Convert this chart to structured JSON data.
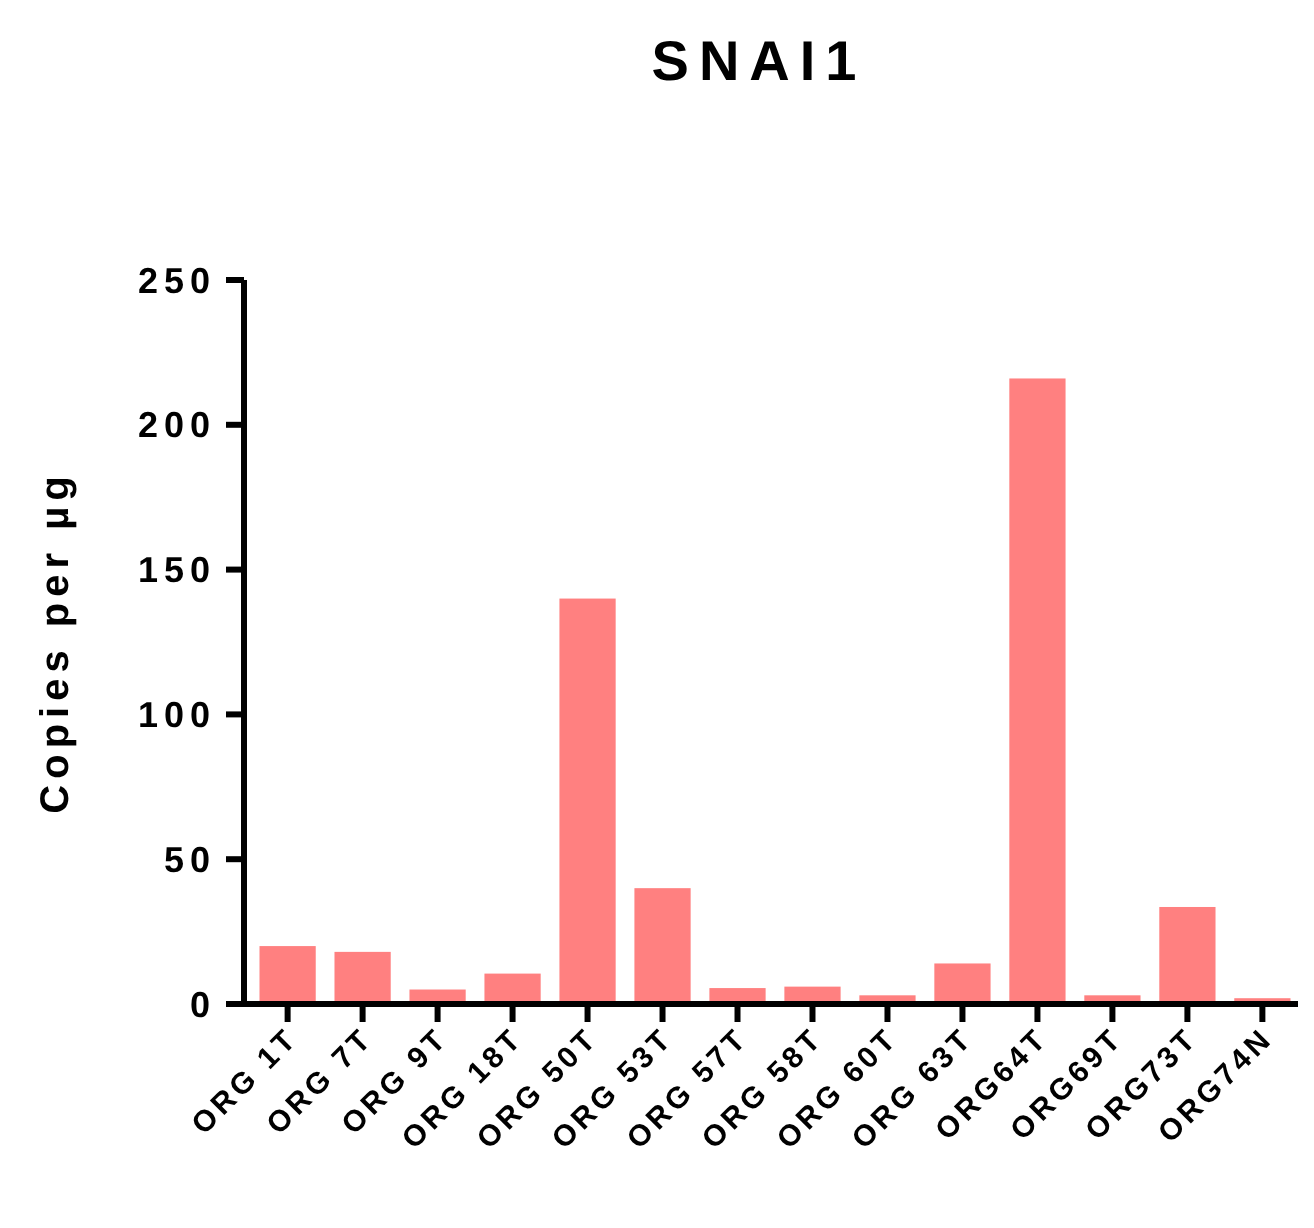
{
  "chart_data": {
    "type": "bar",
    "title": "SNAI1",
    "ylabel": "Copies per µg",
    "categories": [
      "ORG 1T",
      "ORG 7T",
      "ORG 9T",
      "ORG 18T",
      "ORG 50T",
      "ORG 53T",
      "ORG 57T",
      "ORG 58T",
      "ORG 60T",
      "ORG 63T",
      "ORG64T",
      "ORG69T",
      "ORG73T",
      "ORG74N"
    ],
    "values": [
      20,
      18,
      5,
      10.5,
      140,
      40,
      5.5,
      6,
      3,
      14,
      216,
      3,
      33.5,
      2
    ],
    "color": "#ff8080",
    "ylim": [
      0,
      250
    ],
    "yticks": [
      0,
      50,
      100,
      150,
      200,
      250
    ],
    "grid": false
  }
}
